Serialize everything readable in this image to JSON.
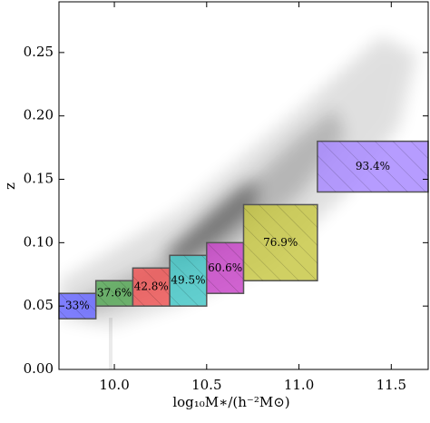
{
  "chart_data": {
    "type": "region-boxes",
    "x_label": "log₁₀M∗/(h⁻²M⊙)",
    "y_label": "z",
    "xlim": [
      9.7,
      11.7
    ],
    "ylim": [
      0,
      0.29
    ],
    "xticks": [
      {
        "value": 10,
        "label": "10.0"
      },
      {
        "value": 10.5,
        "label": "10.5"
      },
      {
        "value": 11,
        "label": "11.0"
      },
      {
        "value": 11.5,
        "label": "11.5"
      }
    ],
    "yticks": [
      {
        "value": 0,
        "label": "0.00"
      },
      {
        "value": 0.05,
        "label": "0.05"
      },
      {
        "value": 0.1,
        "label": "0.10"
      },
      {
        "value": 0.15,
        "label": "0.15"
      },
      {
        "value": 0.2,
        "label": "0.20"
      },
      {
        "value": 0.25,
        "label": "0.25"
      }
    ],
    "regions": [
      {
        "label": "33%",
        "x": [
          9.7,
          9.9
        ],
        "y": [
          0.04,
          0.06
        ],
        "color": "#6b6bff"
      },
      {
        "label": "37.6%",
        "x": [
          9.9,
          10.1
        ],
        "y": [
          0.05,
          0.07
        ],
        "color": "#5aaa5a"
      },
      {
        "label": "42.8%",
        "x": [
          10.1,
          10.3
        ],
        "y": [
          0.05,
          0.08
        ],
        "color": "#ee5858"
      },
      {
        "label": "49.5%",
        "x": [
          10.3,
          10.5
        ],
        "y": [
          0.05,
          0.09
        ],
        "color": "#48c8c8"
      },
      {
        "label": "60.6%",
        "x": [
          10.5,
          10.7
        ],
        "y": [
          0.06,
          0.1
        ],
        "color": "#c848c8"
      },
      {
        "label": "76.9%",
        "x": [
          10.7,
          11.1
        ],
        "y": [
          0.07,
          0.13
        ],
        "color": "#c8c848"
      },
      {
        "label": "93.4%",
        "x": [
          11.1,
          11.7
        ],
        "y": [
          0.14,
          0.18
        ],
        "color": "#a98bff"
      }
    ]
  }
}
